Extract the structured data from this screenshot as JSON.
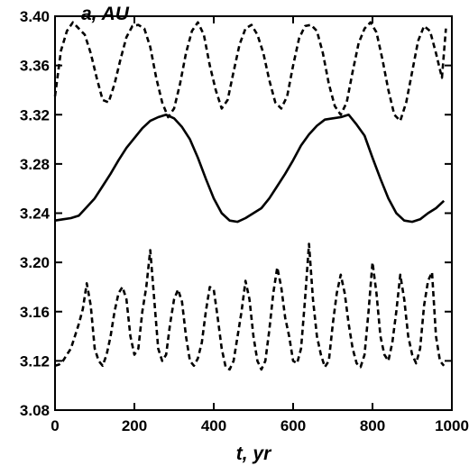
{
  "chart_data": {
    "type": "line",
    "xlabel": "t, yr",
    "ylabel": "a, AU",
    "xlim": [
      0,
      1000
    ],
    "ylim": [
      3.08,
      3.4
    ],
    "xticks": [
      "0",
      "200",
      "400",
      "600",
      "800",
      "1000"
    ],
    "yticks": [
      "3.08",
      "3.12",
      "3.16",
      "3.20",
      "3.24",
      "3.28",
      "3.32",
      "3.36",
      "3.40"
    ],
    "grid": false,
    "series": [
      {
        "style": "dashed",
        "x": [
          0,
          15,
          30,
          45,
          60,
          75,
          90,
          105,
          120,
          135,
          150,
          165,
          180,
          195,
          210,
          225,
          240,
          255,
          270,
          285,
          300,
          315,
          330,
          345,
          360,
          375,
          390,
          405,
          420,
          435,
          450,
          465,
          480,
          495,
          510,
          525,
          540,
          555,
          570,
          585,
          600,
          615,
          630,
          645,
          660,
          675,
          690,
          705,
          720,
          735,
          750,
          765,
          780,
          795,
          810,
          825,
          840,
          855,
          870,
          885,
          900,
          915,
          930,
          945,
          960,
          975,
          985
        ],
        "y": [
          3.335,
          3.372,
          3.388,
          3.395,
          3.39,
          3.385,
          3.37,
          3.35,
          3.332,
          3.33,
          3.345,
          3.365,
          3.383,
          3.392,
          3.393,
          3.39,
          3.375,
          3.35,
          3.33,
          3.318,
          3.325,
          3.345,
          3.37,
          3.388,
          3.395,
          3.385,
          3.36,
          3.34,
          3.325,
          3.332,
          3.355,
          3.377,
          3.39,
          3.393,
          3.385,
          3.37,
          3.348,
          3.33,
          3.325,
          3.335,
          3.36,
          3.382,
          3.392,
          3.393,
          3.388,
          3.37,
          3.345,
          3.327,
          3.32,
          3.33,
          3.355,
          3.378,
          3.39,
          3.395,
          3.387,
          3.365,
          3.34,
          3.32,
          3.315,
          3.33,
          3.355,
          3.38,
          3.392,
          3.388,
          3.37,
          3.35,
          3.39
        ]
      },
      {
        "style": "solid",
        "x": [
          0,
          20,
          40,
          60,
          80,
          100,
          120,
          140,
          160,
          180,
          200,
          220,
          240,
          260,
          280,
          300,
          320,
          340,
          360,
          380,
          400,
          420,
          440,
          460,
          480,
          500,
          520,
          540,
          560,
          580,
          600,
          620,
          640,
          660,
          680,
          700,
          720,
          740,
          760,
          780,
          800,
          820,
          840,
          860,
          880,
          900,
          920,
          940,
          960,
          980
        ],
        "y": [
          3.234,
          3.235,
          3.236,
          3.238,
          3.245,
          3.252,
          3.262,
          3.272,
          3.283,
          3.293,
          3.301,
          3.309,
          3.315,
          3.318,
          3.32,
          3.317,
          3.31,
          3.3,
          3.285,
          3.268,
          3.252,
          3.24,
          3.234,
          3.233,
          3.236,
          3.24,
          3.244,
          3.252,
          3.262,
          3.272,
          3.283,
          3.295,
          3.304,
          3.311,
          3.316,
          3.317,
          3.318,
          3.32,
          3.312,
          3.303,
          3.285,
          3.268,
          3.252,
          3.24,
          3.234,
          3.233,
          3.235,
          3.24,
          3.244,
          3.25
        ]
      },
      {
        "style": "dashed",
        "x": [
          0,
          10,
          20,
          30,
          40,
          50,
          60,
          70,
          80,
          90,
          100,
          110,
          120,
          130,
          140,
          150,
          160,
          170,
          180,
          190,
          200,
          210,
          220,
          230,
          240,
          250,
          260,
          270,
          280,
          290,
          300,
          310,
          320,
          330,
          340,
          350,
          360,
          370,
          380,
          390,
          400,
          410,
          420,
          430,
          440,
          450,
          460,
          470,
          480,
          490,
          500,
          510,
          520,
          530,
          540,
          550,
          560,
          570,
          580,
          590,
          600,
          610,
          620,
          630,
          640,
          650,
          660,
          670,
          680,
          690,
          700,
          710,
          720,
          730,
          740,
          750,
          760,
          770,
          780,
          790,
          800,
          810,
          820,
          830,
          840,
          850,
          860,
          870,
          880,
          890,
          900,
          910,
          920,
          930,
          940,
          950,
          960,
          970,
          980
        ],
        "y": [
          3.116,
          3.117,
          3.12,
          3.125,
          3.13,
          3.14,
          3.15,
          3.162,
          3.183,
          3.165,
          3.13,
          3.12,
          3.116,
          3.125,
          3.14,
          3.16,
          3.175,
          3.18,
          3.17,
          3.14,
          3.125,
          3.13,
          3.16,
          3.18,
          3.21,
          3.17,
          3.13,
          3.12,
          3.125,
          3.15,
          3.17,
          3.178,
          3.168,
          3.14,
          3.12,
          3.116,
          3.122,
          3.135,
          3.16,
          3.18,
          3.178,
          3.155,
          3.13,
          3.115,
          3.113,
          3.12,
          3.14,
          3.16,
          3.185,
          3.17,
          3.14,
          3.12,
          3.113,
          3.12,
          3.145,
          3.175,
          3.196,
          3.18,
          3.155,
          3.14,
          3.12,
          3.118,
          3.13,
          3.17,
          3.215,
          3.17,
          3.14,
          3.125,
          3.115,
          3.12,
          3.15,
          3.175,
          3.19,
          3.175,
          3.15,
          3.13,
          3.118,
          3.115,
          3.125,
          3.16,
          3.2,
          3.175,
          3.14,
          3.125,
          3.12,
          3.135,
          3.16,
          3.19,
          3.17,
          3.14,
          3.125,
          3.118,
          3.13,
          3.165,
          3.185,
          3.192,
          3.14,
          3.12,
          3.116
        ]
      }
    ]
  }
}
